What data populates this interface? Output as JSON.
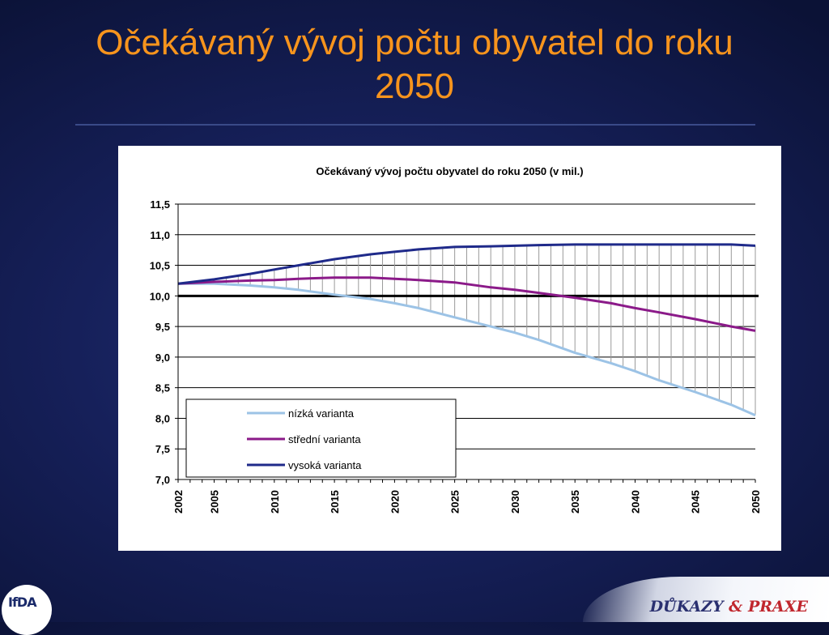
{
  "slide": {
    "title_line1": "Očekávaný vývoj počtu obyvatel do roku",
    "title_line2": "2050",
    "title_color": "#f7941d"
  },
  "logos": {
    "left_text": "IfDA",
    "right_text_part1": "DŮKAZY",
    "right_text_amp": "&",
    "right_text_part2": "PRAXE"
  },
  "chart_data": {
    "type": "line",
    "title": "Očekávaný vývoj počtu obyvatel do roku 2050 (v mil.)",
    "x_tick_labels": [
      "2002",
      "2005",
      "2010",
      "2015",
      "2020",
      "2025",
      "2030",
      "2035",
      "2040",
      "2045",
      "2050"
    ],
    "x_ticks": [
      2002,
      2005,
      2010,
      2015,
      2020,
      2025,
      2030,
      2035,
      2040,
      2045,
      2050
    ],
    "xlim": [
      2002,
      2050
    ],
    "y_tick_labels": [
      "11,5",
      "11,0",
      "10,5",
      "10,0",
      "9,5",
      "9,0",
      "8,5",
      "8,0",
      "7,5",
      "7,0"
    ],
    "y_ticks": [
      11.5,
      11.0,
      10.5,
      10.0,
      9.5,
      9.0,
      8.5,
      8.0,
      7.5,
      7.0
    ],
    "ylim": [
      7.0,
      11.5
    ],
    "reference_line": 10.0,
    "grid": "horizontal",
    "vertical_drop_lines": "between high and low variant, every year",
    "legend_placement": "bottom-left",
    "series": [
      {
        "name": "nízká varianta",
        "color": "#9cc3e6",
        "x": [
          2002,
          2005,
          2008,
          2010,
          2012,
          2015,
          2018,
          2020,
          2022,
          2025,
          2028,
          2030,
          2032,
          2035,
          2038,
          2040,
          2042,
          2045,
          2048,
          2050
        ],
        "values": [
          10.2,
          10.2,
          10.17,
          10.14,
          10.1,
          10.02,
          9.95,
          9.88,
          9.8,
          9.65,
          9.5,
          9.4,
          9.28,
          9.07,
          8.9,
          8.77,
          8.62,
          8.43,
          8.22,
          8.05
        ]
      },
      {
        "name": "střední varianta",
        "color": "#8b1a89",
        "x": [
          2002,
          2005,
          2008,
          2010,
          2012,
          2015,
          2018,
          2020,
          2022,
          2025,
          2028,
          2030,
          2032,
          2035,
          2038,
          2040,
          2042,
          2045,
          2048,
          2050
        ],
        "values": [
          10.2,
          10.23,
          10.25,
          10.26,
          10.28,
          10.3,
          10.3,
          10.28,
          10.26,
          10.22,
          10.14,
          10.1,
          10.05,
          9.97,
          9.88,
          9.8,
          9.73,
          9.62,
          9.5,
          9.43
        ]
      },
      {
        "name": "vysoká varianta",
        "color": "#1f2a8a",
        "x": [
          2002,
          2005,
          2008,
          2010,
          2012,
          2015,
          2018,
          2020,
          2022,
          2025,
          2028,
          2030,
          2032,
          2035,
          2038,
          2040,
          2042,
          2045,
          2048,
          2050
        ],
        "values": [
          10.2,
          10.27,
          10.36,
          10.43,
          10.5,
          10.6,
          10.68,
          10.72,
          10.76,
          10.8,
          10.81,
          10.82,
          10.83,
          10.84,
          10.84,
          10.84,
          10.84,
          10.84,
          10.84,
          10.82
        ]
      }
    ]
  }
}
